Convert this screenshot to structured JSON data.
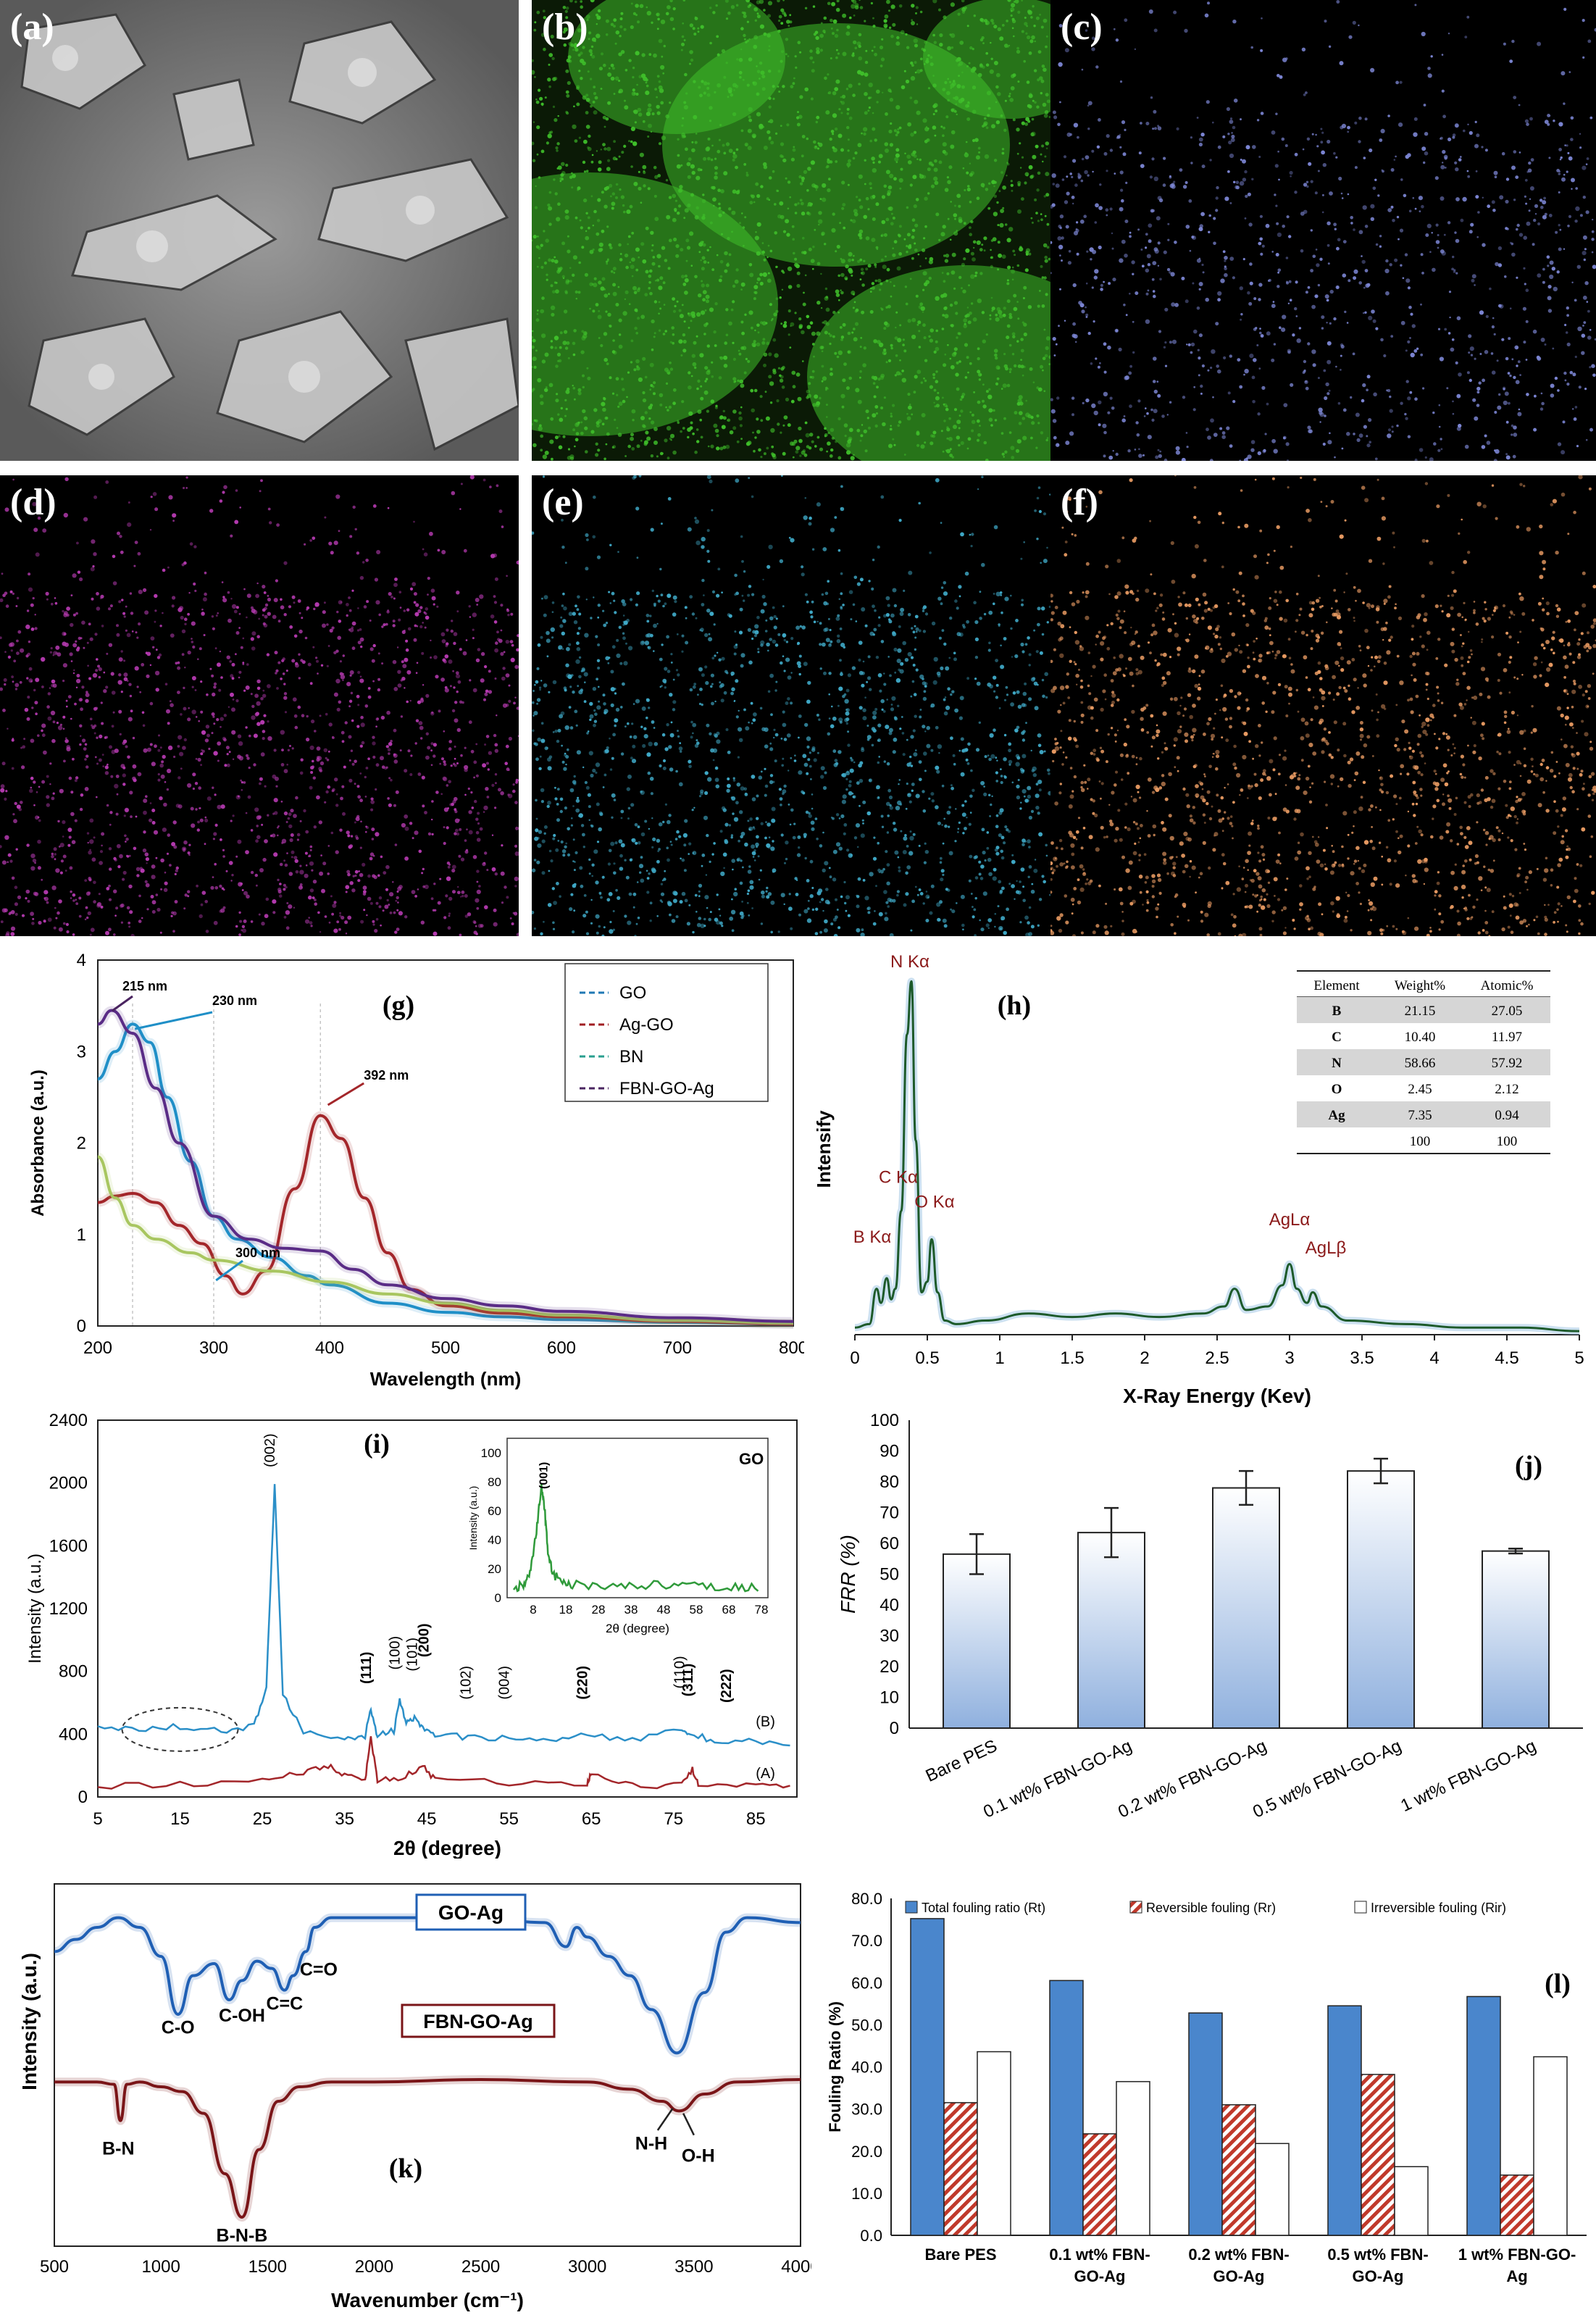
{
  "eds_maps": {
    "labels": [
      "(a)",
      "(b)",
      "(c)",
      "(d)",
      "(e)",
      "(f)"
    ],
    "colors": [
      "sem",
      "#3fbf2a",
      "#7c86d4",
      "#b53ab0",
      "#3fa9c7",
      "#e79a62"
    ]
  },
  "chart_data": [
    {
      "id": "g",
      "panel_label": "(g)",
      "type": "line",
      "xlabel": "Wavelength (nm)",
      "ylabel": "Absorbance (a.u.)",
      "xlim": [
        200,
        800
      ],
      "ylim": [
        0,
        4
      ],
      "xticks": [
        "200",
        "300",
        "400",
        "500",
        "600",
        "700",
        "800"
      ],
      "yticks": [
        "0",
        "1",
        "2",
        "3",
        "4"
      ],
      "legend": [
        "GO",
        "Ag-GO",
        "BN",
        "FBN-GO-Ag"
      ],
      "legend_colors": [
        "#1f78b4",
        "#a01d22",
        "#2a9f8f",
        "#4a2460"
      ],
      "annotations": [
        "215 nm",
        "230 nm",
        "300 nm",
        "392 nm"
      ],
      "series": [
        {
          "name": "GO",
          "color": "#1f8fc7",
          "x": [
            200,
            215,
            230,
            245,
            260,
            280,
            300,
            320,
            350,
            380,
            400,
            450,
            500,
            550,
            600,
            700,
            800
          ],
          "y": [
            2.7,
            3.0,
            3.3,
            3.1,
            2.5,
            1.8,
            1.2,
            0.95,
            0.75,
            0.55,
            0.45,
            0.25,
            0.15,
            0.1,
            0.07,
            0.04,
            0.02
          ]
        },
        {
          "name": "Ag-GO",
          "color": "#a3262a",
          "x": [
            200,
            215,
            230,
            250,
            270,
            290,
            310,
            325,
            345,
            370,
            392,
            410,
            430,
            450,
            470,
            500,
            550,
            600,
            700,
            800
          ],
          "y": [
            1.35,
            1.42,
            1.45,
            1.35,
            1.1,
            0.9,
            0.55,
            0.35,
            0.6,
            1.5,
            2.3,
            2.05,
            1.4,
            0.8,
            0.4,
            0.22,
            0.14,
            0.1,
            0.05,
            0.02
          ]
        },
        {
          "name": "BN",
          "color": "#a8c660",
          "x": [
            200,
            215,
            230,
            250,
            280,
            300,
            350,
            400,
            450,
            500,
            550,
            600,
            700,
            800
          ],
          "y": [
            1.85,
            1.4,
            1.1,
            0.95,
            0.8,
            0.72,
            0.6,
            0.48,
            0.35,
            0.25,
            0.17,
            0.12,
            0.06,
            0.03
          ]
        },
        {
          "name": "FBN-GO-Ag",
          "color": "#5a2c86",
          "x": [
            200,
            212,
            230,
            250,
            270,
            300,
            330,
            360,
            392,
            420,
            450,
            500,
            550,
            600,
            700,
            800
          ],
          "y": [
            3.3,
            3.45,
            3.2,
            2.6,
            2.0,
            1.2,
            0.95,
            0.85,
            0.82,
            0.62,
            0.45,
            0.3,
            0.22,
            0.16,
            0.09,
            0.05
          ]
        }
      ]
    },
    {
      "id": "h",
      "panel_label": "(h)",
      "type": "line",
      "xlabel": "X-Ray Energy (Kev)",
      "ylabel": "Intensify",
      "xlim": [
        0,
        5
      ],
      "xticks": [
        "0",
        "0.5",
        "1",
        "1.5",
        "2",
        "2.5",
        "3",
        "3.5",
        "4",
        "4.5",
        "5"
      ],
      "peak_labels": [
        "B Kα",
        "C Kα",
        "N Kα",
        "O Kα",
        "AgLα",
        "AgLβ"
      ],
      "table": {
        "headers": [
          "Element",
          "Weight%",
          "Atomic%"
        ],
        "rows": [
          [
            "B",
            "21.15",
            "27.05"
          ],
          [
            "C",
            "10.40",
            "11.97"
          ],
          [
            "N",
            "58.66",
            "57.92"
          ],
          [
            "O",
            "2.45",
            "2.12"
          ],
          [
            "Ag",
            "7.35",
            "0.94"
          ],
          [
            "",
            "100",
            "100"
          ]
        ]
      },
      "series": [
        {
          "color": "#1d5a2a",
          "x": [
            0,
            0.1,
            0.15,
            0.18,
            0.22,
            0.25,
            0.28,
            0.32,
            0.36,
            0.39,
            0.42,
            0.46,
            0.5,
            0.53,
            0.57,
            0.62,
            0.7,
            0.9,
            1.2,
            1.5,
            1.8,
            2.1,
            2.4,
            2.55,
            2.62,
            2.7,
            2.85,
            2.95,
            3.0,
            3.05,
            3.12,
            3.16,
            3.22,
            3.4,
            3.8,
            4.2,
            4.6,
            5.0
          ],
          "y": [
            0.02,
            0.03,
            0.13,
            0.09,
            0.16,
            0.1,
            0.13,
            0.35,
            0.85,
            1.0,
            0.55,
            0.12,
            0.15,
            0.27,
            0.12,
            0.04,
            0.03,
            0.04,
            0.06,
            0.05,
            0.06,
            0.05,
            0.06,
            0.08,
            0.13,
            0.07,
            0.08,
            0.14,
            0.2,
            0.13,
            0.09,
            0.12,
            0.08,
            0.04,
            0.03,
            0.02,
            0.02,
            0.01
          ]
        }
      ]
    },
    {
      "id": "i",
      "panel_label": "(i)",
      "type": "line",
      "xlabel": "2θ (degree)",
      "ylabel": "Intensity (a.u.)",
      "xlim": [
        5,
        90
      ],
      "ylim": [
        0,
        2400
      ],
      "xticks": [
        "5",
        "15",
        "25",
        "35",
        "45",
        "55",
        "65",
        "75",
        "85"
      ],
      "yticks": [
        "0",
        "400",
        "800",
        "1200",
        "1600",
        "2000",
        "2400"
      ],
      "peak_labels": [
        "(002)",
        "(111)",
        "(100)",
        "(101)",
        "(200)",
        "(102)",
        "(004)",
        "(220)",
        "(110)",
        "(311)",
        "(222)"
      ],
      "series_labels": [
        "(B)",
        "(A)"
      ],
      "series": [
        {
          "name": "(B)",
          "color": "#2b8fc8",
          "x": [
            5,
            10,
            15,
            20,
            24,
            25.5,
            26.5,
            27.5,
            30,
            35,
            37.5,
            38.2,
            39,
            41,
            41.7,
            42.5,
            43.5,
            44.5,
            46,
            50,
            55,
            60,
            64.5,
            70,
            76,
            77,
            80,
            85,
            90
          ],
          "y": [
            460,
            430,
            450,
            420,
            450,
            700,
            2000,
            650,
            420,
            380,
            390,
            560,
            390,
            420,
            610,
            470,
            510,
            440,
            400,
            380,
            370,
            370,
            400,
            360,
            430,
            400,
            360,
            350,
            340
          ]
        },
        {
          "name": "(A)",
          "color": "#a3262a",
          "x": [
            5,
            15,
            25,
            30,
            33,
            35,
            37.5,
            38.2,
            39,
            42,
            44.5,
            46,
            55,
            64.5,
            65,
            70,
            76,
            77.3,
            78,
            85,
            90
          ],
          "y": [
            70,
            80,
            100,
            160,
            200,
            130,
            110,
            380,
            110,
            120,
            200,
            110,
            90,
            80,
            160,
            70,
            80,
            180,
            80,
            70,
            60
          ]
        }
      ],
      "inset": {
        "label": "GO",
        "peak_label": "(001)",
        "xlabel": "2θ (degree)",
        "ylabel": "Intensity (a.u.)",
        "xlim": [
          0,
          80
        ],
        "ylim": [
          0,
          110
        ],
        "xticks": [
          "8",
          "18",
          "28",
          "38",
          "48",
          "58",
          "68",
          "78"
        ],
        "yticks": [
          "0",
          "20",
          "40",
          "60",
          "80",
          "100"
        ],
        "series": {
          "color": "#2f9a3a",
          "x": [
            2,
            5,
            7,
            9,
            10.5,
            11.5,
            12.5,
            14,
            17,
            20,
            30,
            40,
            50,
            60,
            70,
            78
          ],
          "y": [
            5,
            8,
            15,
            45,
            75,
            60,
            30,
            15,
            10,
            8,
            7,
            8,
            7,
            7,
            6,
            6
          ]
        }
      }
    },
    {
      "id": "j",
      "panel_label": "(j)",
      "type": "bar",
      "ylabel": "FRR (%)",
      "ylim": [
        0,
        100
      ],
      "yticks": [
        "0",
        "10",
        "20",
        "30",
        "40",
        "50",
        "60",
        "70",
        "80",
        "90",
        "100"
      ],
      "categories": [
        "Bare PES",
        "0.1 wt% FBN-GO-Ag",
        "0.2 wt% FBN-GO-Ag",
        "0.5 wt% FBN-GO-Ag",
        "1 wt% FBN-GO-Ag"
      ],
      "values": [
        56.5,
        63.5,
        78,
        83.5,
        57.5
      ],
      "errors": [
        6.5,
        8,
        5.5,
        4,
        0.8
      ]
    },
    {
      "id": "k",
      "panel_label": "(k)",
      "type": "line",
      "xlabel": "Wavenumber (cm⁻¹)",
      "ylabel": "Intensity (a.u.)",
      "xlim": [
        500,
        4000
      ],
      "xticks": [
        "500",
        "1000",
        "1500",
        "2000",
        "2500",
        "3000",
        "3500",
        "4000"
      ],
      "series_labels": [
        "GO-Ag",
        "FBN-GO-Ag"
      ],
      "band_labels": [
        "C-O",
        "C-OH",
        "C=C",
        "C=O",
        "B-N",
        "B-N-B",
        "N-H",
        "O-H"
      ],
      "series": [
        {
          "name": "GO-Ag",
          "color": "#1f5fb4",
          "x": [
            500,
            600,
            700,
            800,
            900,
            1000,
            1080,
            1150,
            1250,
            1320,
            1380,
            1450,
            1520,
            1580,
            1620,
            1680,
            1720,
            1800,
            2000,
            2500,
            2800,
            2900,
            2950,
            3000,
            3100,
            3200,
            3300,
            3420,
            3550,
            3650,
            3750,
            4000
          ],
          "y": [
            0.62,
            0.67,
            0.72,
            0.76,
            0.72,
            0.6,
            0.36,
            0.52,
            0.57,
            0.42,
            0.5,
            0.58,
            0.55,
            0.46,
            0.52,
            0.62,
            0.72,
            0.76,
            0.76,
            0.76,
            0.74,
            0.64,
            0.72,
            0.68,
            0.6,
            0.52,
            0.38,
            0.2,
            0.45,
            0.7,
            0.76,
            0.74
          ]
        },
        {
          "name": "FBN-GO-Ag",
          "color": "#7a1518",
          "x": [
            500,
            700,
            780,
            810,
            840,
            900,
            1000,
            1100,
            1200,
            1300,
            1380,
            1460,
            1550,
            1650,
            1800,
            2000,
            2500,
            3000,
            3200,
            3350,
            3430,
            3550,
            3700,
            4000
          ],
          "y": [
            0.08,
            0.08,
            0.07,
            -0.08,
            0.07,
            0.08,
            0.06,
            0.04,
            -0.05,
            -0.3,
            -0.48,
            -0.2,
            0.0,
            0.06,
            0.08,
            0.08,
            0.09,
            0.08,
            0.05,
            0.0,
            -0.04,
            0.03,
            0.08,
            0.09
          ]
        }
      ]
    },
    {
      "id": "l",
      "panel_label": "(l)",
      "type": "bar",
      "ylabel": "Fouling Ratio (%)",
      "ylim": [
        0,
        80
      ],
      "yticks": [
        "0.0",
        "10.0",
        "20.0",
        "30.0",
        "40.0",
        "50.0",
        "60.0",
        "70.0",
        "80.0"
      ],
      "categories": [
        [
          "Bare PES"
        ],
        [
          "0.1 wt% FBN-",
          "GO-Ag"
        ],
        [
          "0.2 wt% FBN-",
          "GO-Ag"
        ],
        [
          "0.5 wt% FBN-",
          "GO-Ag"
        ],
        [
          "1 wt% FBN-GO-",
          "Ag"
        ]
      ],
      "series": [
        {
          "name": "Total fouling ratio (Rt)",
          "color": "#4a86cc",
          "values": [
            75.2,
            60.5,
            52.8,
            54.5,
            56.7
          ]
        },
        {
          "name": "Reversible fouling (Rr)",
          "color": "#c0392b",
          "values": [
            31.5,
            24.1,
            31,
            38.2,
            14.3
          ]
        },
        {
          "name": "Irreversible fouling (Rir)",
          "color": "#ffffff",
          "values": [
            43.6,
            36.5,
            21.8,
            16.3,
            42.4
          ]
        }
      ]
    }
  ]
}
